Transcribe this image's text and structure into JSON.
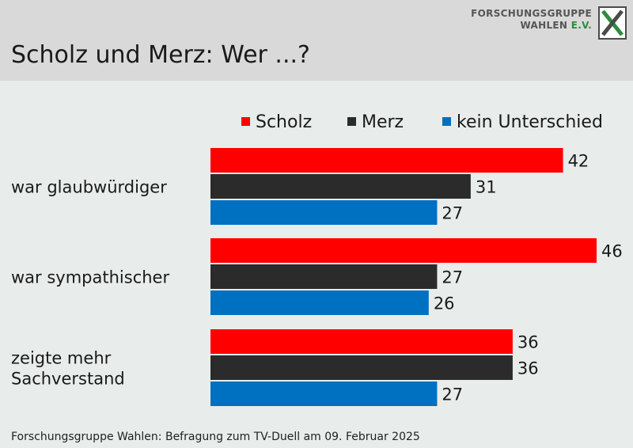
{
  "header": {
    "title": "Scholz und Merz: Wer ...?",
    "logo_line1": "FORSCHUNGSGRUPPE",
    "logo_line2": "WAHLEN",
    "logo_line2_suffix": "E.V."
  },
  "footer": {
    "source": "Forschungsgruppe Wahlen: Befragung zum TV-Duell am 09. Februar 2025"
  },
  "colors": {
    "background": "#e8ecea",
    "header_bg": "#d9d9d9",
    "brand_green": "#2e8b3e"
  },
  "chart_data": {
    "type": "bar",
    "orientation": "horizontal",
    "categories": [
      "war glaubwürdiger",
      "war sympathischer",
      "zeigte mehr Sachverstand"
    ],
    "category_lines": [
      [
        "war glaubwürdiger"
      ],
      [
        "war sympathischer"
      ],
      [
        "zeigte mehr",
        "Sachverstand"
      ]
    ],
    "series": [
      {
        "name": "Scholz",
        "color": "#ff0000",
        "values": [
          42,
          46,
          36
        ]
      },
      {
        "name": "Merz",
        "color": "#2b2b2b",
        "values": [
          31,
          27,
          36
        ]
      },
      {
        "name": "kein Unterschied",
        "color": "#0070c0",
        "values": [
          27,
          26,
          27
        ]
      }
    ],
    "xlim": [
      0,
      46
    ],
    "legend_position": "top-right",
    "data_labels": true,
    "grid": false,
    "unit": "percent"
  }
}
